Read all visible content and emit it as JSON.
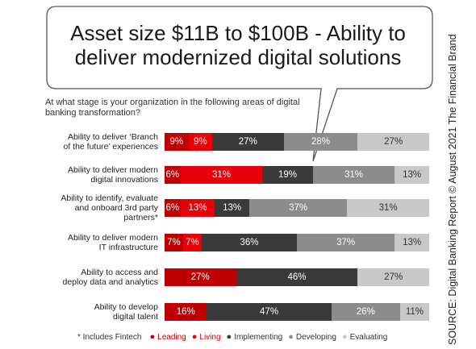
{
  "chart_data": {
    "type": "bar",
    "orientation": "horizontal-stacked-100",
    "title": "Asset size $11B to $100B - Ability to deliver modernized digital solutions",
    "subtitle": "At what stage is your organization in the following areas of digital banking transformation?",
    "series": [
      {
        "name": "Leading",
        "color": "#c00000"
      },
      {
        "name": "Living",
        "color": "#e8000a"
      },
      {
        "name": "Implementing",
        "color": "#3a3a3a"
      },
      {
        "name": "Developing",
        "color": "#8c8c8c"
      },
      {
        "name": "Evaluating",
        "color": "#c8c8c8"
      }
    ],
    "rows": [
      {
        "label": "Ability to deliver ‘Branch\nof the future’ experiences",
        "values": [
          9,
          9,
          27,
          28,
          27
        ]
      },
      {
        "label": "Ability to deliver modern\ndigital innovations",
        "values": [
          6,
          31,
          19,
          31,
          13
        ]
      },
      {
        "label": "Ability to identify, evaluate\nand onboard 3rd party\npartners*",
        "values": [
          6,
          13,
          13,
          37,
          31
        ]
      },
      {
        "label": "Ability to deliver modern\nIT infrastructure",
        "values": [
          7,
          7,
          36,
          37,
          13
        ]
      },
      {
        "label": "Ability to access and\ndeploy data and analytics",
        "values": [
          27,
          0,
          46,
          0,
          27
        ]
      },
      {
        "label": "Ability to develop\ndigital talent",
        "values": [
          16,
          0,
          47,
          26,
          11
        ]
      }
    ],
    "value_suffix": "%",
    "legend": "bottom"
  },
  "footnote": "* Includes Fintech",
  "source": "SOURCE: Digital Banking Report © August 2021 The Financial Brand"
}
